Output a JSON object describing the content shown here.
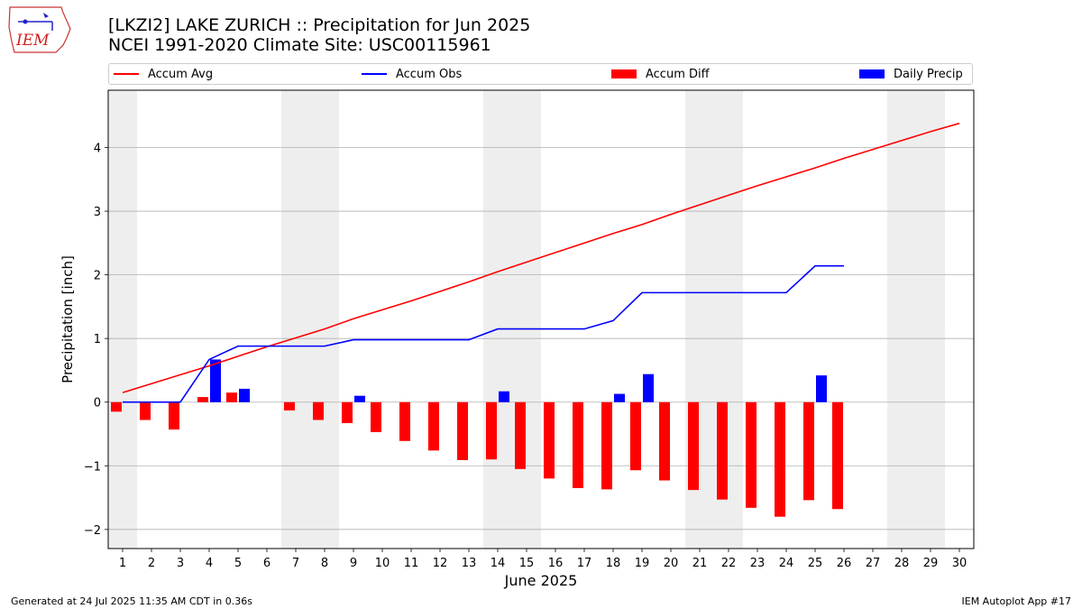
{
  "logo_text": "IEM",
  "title": "[LKZI2] LAKE ZURICH :: Precipitation for Jun 2025",
  "subtitle": "NCEI 1991-2020 Climate Site: USC00115961",
  "footer_left": "Generated at 24 Jul 2025 11:35 AM CDT in 0.36s",
  "footer_right": "IEM Autoplot App #17",
  "colors": {
    "avg": "#ff0000",
    "obs": "#0000ff",
    "diff": "#ff0000",
    "daily": "#0000ff",
    "weekend_shade": "#eeeeee",
    "grid": "#b0b0b0"
  },
  "chart_data": {
    "type": "bar",
    "title": "[LKZI2] LAKE ZURICH :: Precipitation for Jun 2025",
    "subtitle": "NCEI 1991-2020 Climate Site: USC00115961",
    "xlabel": "June 2025",
    "ylabel": "Precipitation [inch]",
    "ylim": [
      -2.3,
      4.9
    ],
    "xlim": [
      0.5,
      30.5
    ],
    "yticks": [
      -2,
      -1,
      0,
      1,
      2,
      3,
      4
    ],
    "ytick_labels": [
      "−2",
      "−1",
      "0",
      "1",
      "2",
      "3",
      "4"
    ],
    "days": [
      1,
      2,
      3,
      4,
      5,
      6,
      7,
      8,
      9,
      10,
      11,
      12,
      13,
      14,
      15,
      16,
      17,
      18,
      19,
      20,
      21,
      22,
      23,
      24,
      25,
      26,
      27,
      28,
      29,
      30
    ],
    "grid": true,
    "legend_position": "top",
    "shaded_days": [
      1,
      7,
      8,
      14,
      15,
      21,
      22,
      28,
      29
    ],
    "series": [
      {
        "name": "Accum Avg",
        "kind": "line",
        "values": [
          0.15,
          0.29,
          0.43,
          0.57,
          0.72,
          0.87,
          1.01,
          1.15,
          1.31,
          1.45,
          1.59,
          1.74,
          1.89,
          2.05,
          2.2,
          2.35,
          2.5,
          2.65,
          2.79,
          2.95,
          3.1,
          3.25,
          3.4,
          3.54,
          3.68,
          3.83,
          3.97,
          4.11,
          4.25,
          4.38
        ]
      },
      {
        "name": "Accum Obs",
        "kind": "line",
        "values": [
          0,
          0,
          0,
          0.67,
          0.88,
          0.88,
          0.88,
          0.88,
          0.98,
          0.98,
          0.98,
          0.98,
          0.98,
          1.15,
          1.15,
          1.15,
          1.15,
          1.28,
          1.72,
          1.72,
          1.72,
          1.72,
          1.72,
          1.72,
          2.14,
          2.14
        ]
      },
      {
        "name": "Accum Diff",
        "kind": "bar",
        "values": [
          -0.15,
          -0.28,
          -0.43,
          0.08,
          0.15,
          0,
          -0.13,
          -0.28,
          -0.33,
          -0.47,
          -0.61,
          -0.76,
          -0.91,
          -0.9,
          -1.05,
          -1.2,
          -1.35,
          -1.37,
          -1.07,
          -1.23,
          -1.38,
          -1.53,
          -1.66,
          -1.8,
          -1.54,
          -1.68
        ]
      },
      {
        "name": "Daily Precip",
        "kind": "bar",
        "values": [
          0,
          0,
          0,
          0.67,
          0.21,
          0,
          0,
          0,
          0.1,
          0,
          0,
          0,
          0,
          0.17,
          0,
          0,
          0,
          0.13,
          0.44,
          0,
          0,
          0,
          0,
          0,
          0.42,
          0
        ]
      }
    ]
  }
}
